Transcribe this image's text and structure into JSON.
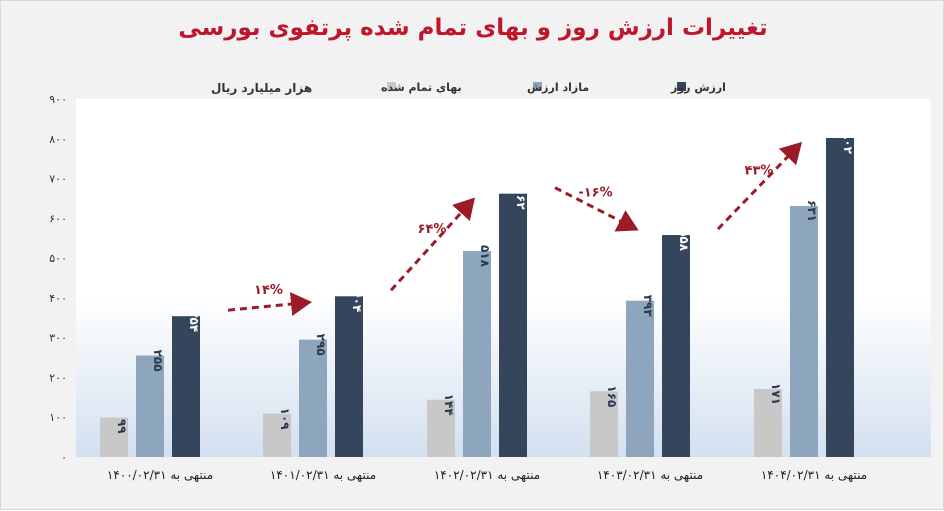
{
  "chart_data": {
    "type": "bar",
    "title": "تغییرات ارزش روز و بهای تمام شده پرتفوی بورسی",
    "ylabel": "هزار میلیارد ریال",
    "ylim": [
      0,
      900
    ],
    "yticks": [
      0,
      100,
      200,
      300,
      400,
      500,
      600,
      700,
      800,
      900
    ],
    "ytick_labels": [
      "۰",
      "۱۰۰",
      "۲۰۰",
      "۳۰۰",
      "۴۰۰",
      "۵۰۰",
      "۶۰۰",
      "۷۰۰",
      "۸۰۰",
      "۹۰۰"
    ],
    "categories": [
      "منتهی به ۱۴۰۰/۰۲/۳۱",
      "منتهی به ۱۴۰۱/۰۲/۳۱",
      "منتهی به ۱۴۰۲/۰۲/۳۱",
      "منتهی به ۱۴۰۳/۰۲/۳۱",
      "منتهی به ۱۴۰۴/۰۲/۳۱"
    ],
    "series": [
      {
        "name": "بهای تمام شده",
        "color": "#c8c8c8",
        "values": [
          99,
          109,
          144,
          165,
          171
        ],
        "value_labels": [
          "۹۹",
          "۱۰۹",
          "۱۴۴",
          "۱۶۵",
          "۱۷۱"
        ]
      },
      {
        "name": "مازاد ارزش",
        "color": "#8da5bd",
        "values": [
          255,
          295,
          518,
          393,
          631
        ],
        "value_labels": [
          "۲۵۵",
          "۲۹۵",
          "۵۱۸",
          "۳۹۳",
          "۶۳۱"
        ]
      },
      {
        "name": "ارزش روز",
        "color": "#34455c",
        "values": [
          354,
          404,
          662,
          558,
          802
        ],
        "value_labels": [
          "۳۵۴",
          "۴۰۴",
          "۶۶۲",
          "۵۵۸",
          "۸۰۲"
        ]
      }
    ],
    "annotations": [
      {
        "text": "۱۴%",
        "between": [
          0,
          1
        ]
      },
      {
        "text": "۶۴%",
        "between": [
          1,
          2
        ]
      },
      {
        "text": "-۱۶%",
        "between": [
          2,
          3
        ]
      },
      {
        "text": "۴۳%",
        "between": [
          3,
          4
        ]
      }
    ],
    "legend_position": "top",
    "grid": false
  }
}
